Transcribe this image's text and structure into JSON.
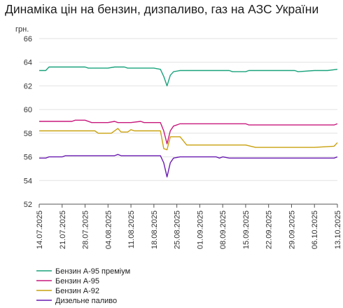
{
  "chart_data": {
    "type": "line",
    "title": "Динаміка цін на бензин, дизпаливо, газ на АЗС України",
    "ylabel": "грн.",
    "xlabel": "",
    "ylim": [
      52,
      66
    ],
    "yticks": [
      52,
      54,
      56,
      58,
      60,
      62,
      64,
      66
    ],
    "grid": "horizontal",
    "legend_position": "bottom-left",
    "x_ticks": [
      "14.07.2025",
      "21.07.2025",
      "28.07.2025",
      "04.08.2025",
      "11.08.2025",
      "18.08.2025",
      "25.08.2025",
      "01.09.2025",
      "08.09.2025",
      "15.09.2025",
      "22.09.2025",
      "29.09.2025",
      "06.10.2025",
      "13.10.2025"
    ],
    "series": [
      {
        "name": "Бензин А-95 преміум",
        "color": "#1aa37c",
        "points": [
          [
            "14.07.2025",
            63.3
          ],
          [
            "16.07.2025",
            63.3
          ],
          [
            "17.07.2025",
            63.6
          ],
          [
            "21.07.2025",
            63.6
          ],
          [
            "28.07.2025",
            63.6
          ],
          [
            "29.07.2025",
            63.5
          ],
          [
            "04.08.2025",
            63.5
          ],
          [
            "06.08.2025",
            63.6
          ],
          [
            "09.08.2025",
            63.6
          ],
          [
            "10.08.2025",
            63.5
          ],
          [
            "18.08.2025",
            63.5
          ],
          [
            "20.08.2025",
            63.4
          ],
          [
            "21.08.2025",
            62.8
          ],
          [
            "22.08.2025",
            62.0
          ],
          [
            "23.08.2025",
            62.9
          ],
          [
            "24.08.2025",
            63.2
          ],
          [
            "26.08.2025",
            63.3
          ],
          [
            "08.09.2025",
            63.3
          ],
          [
            "10.09.2025",
            63.3
          ],
          [
            "11.09.2025",
            63.2
          ],
          [
            "15.09.2025",
            63.2
          ],
          [
            "16.09.2025",
            63.3
          ],
          [
            "22.09.2025",
            63.3
          ],
          [
            "30.09.2025",
            63.3
          ],
          [
            "01.10.2025",
            63.2
          ],
          [
            "06.10.2025",
            63.3
          ],
          [
            "10.10.2025",
            63.3
          ],
          [
            "13.10.2025",
            63.4
          ]
        ]
      },
      {
        "name": "Бензин А-95",
        "color": "#c8197d",
        "points": [
          [
            "14.07.2025",
            59.0
          ],
          [
            "21.07.2025",
            59.0
          ],
          [
            "24.07.2025",
            59.0
          ],
          [
            "25.07.2025",
            59.1
          ],
          [
            "28.07.2025",
            59.1
          ],
          [
            "30.07.2025",
            58.9
          ],
          [
            "04.08.2025",
            58.9
          ],
          [
            "06.08.2025",
            59.0
          ],
          [
            "07.08.2025",
            58.9
          ],
          [
            "11.08.2025",
            58.9
          ],
          [
            "14.08.2025",
            59.0
          ],
          [
            "15.08.2025",
            58.9
          ],
          [
            "18.08.2025",
            58.9
          ],
          [
            "20.08.2025",
            58.9
          ],
          [
            "21.08.2025",
            58.2
          ],
          [
            "22.08.2025",
            57.1
          ],
          [
            "23.08.2025",
            58.2
          ],
          [
            "24.08.2025",
            58.6
          ],
          [
            "26.08.2025",
            58.8
          ],
          [
            "01.09.2025",
            58.8
          ],
          [
            "08.09.2025",
            58.8
          ],
          [
            "15.09.2025",
            58.8
          ],
          [
            "16.09.2025",
            58.7
          ],
          [
            "22.09.2025",
            58.7
          ],
          [
            "06.10.2025",
            58.7
          ],
          [
            "12.10.2025",
            58.7
          ],
          [
            "13.10.2025",
            58.8
          ]
        ]
      },
      {
        "name": "Бензин А-92",
        "color": "#c9a10f",
        "points": [
          [
            "14.07.2025",
            58.2
          ],
          [
            "21.07.2025",
            58.2
          ],
          [
            "28.07.2025",
            58.2
          ],
          [
            "31.07.2025",
            58.2
          ],
          [
            "01.08.2025",
            58.0
          ],
          [
            "05.08.2025",
            58.0
          ],
          [
            "07.08.2025",
            58.4
          ],
          [
            "08.08.2025",
            58.1
          ],
          [
            "10.08.2025",
            58.1
          ],
          [
            "11.08.2025",
            58.3
          ],
          [
            "12.08.2025",
            58.2
          ],
          [
            "18.08.2025",
            58.2
          ],
          [
            "20.08.2025",
            58.2
          ],
          [
            "21.08.2025",
            56.7
          ],
          [
            "22.08.2025",
            56.6
          ],
          [
            "23.08.2025",
            57.7
          ],
          [
            "26.08.2025",
            57.7
          ],
          [
            "28.08.2025",
            57.0
          ],
          [
            "01.09.2025",
            57.0
          ],
          [
            "08.09.2025",
            57.0
          ],
          [
            "15.09.2025",
            57.0
          ],
          [
            "18.09.2025",
            56.8
          ],
          [
            "22.09.2025",
            56.8
          ],
          [
            "06.10.2025",
            56.8
          ],
          [
            "12.10.2025",
            56.9
          ],
          [
            "13.10.2025",
            57.2
          ]
        ]
      },
      {
        "name": "Дизельне паливо",
        "color": "#6a1bb0",
        "points": [
          [
            "14.07.2025",
            55.9
          ],
          [
            "16.07.2025",
            55.9
          ],
          [
            "17.07.2025",
            56.0
          ],
          [
            "21.07.2025",
            56.0
          ],
          [
            "22.07.2025",
            56.1
          ],
          [
            "28.07.2025",
            56.1
          ],
          [
            "04.08.2025",
            56.1
          ],
          [
            "06.08.2025",
            56.1
          ],
          [
            "07.08.2025",
            56.2
          ],
          [
            "08.08.2025",
            56.1
          ],
          [
            "18.08.2025",
            56.1
          ],
          [
            "20.08.2025",
            56.1
          ],
          [
            "21.08.2025",
            55.5
          ],
          [
            "22.08.2025",
            54.3
          ],
          [
            "23.08.2025",
            55.5
          ],
          [
            "24.08.2025",
            55.9
          ],
          [
            "26.08.2025",
            56.0
          ],
          [
            "01.09.2025",
            56.0
          ],
          [
            "06.09.2025",
            56.0
          ],
          [
            "07.09.2025",
            55.9
          ],
          [
            "08.09.2025",
            56.0
          ],
          [
            "10.09.2025",
            55.9
          ],
          [
            "22.09.2025",
            55.9
          ],
          [
            "06.10.2025",
            55.9
          ],
          [
            "12.10.2025",
            55.9
          ],
          [
            "13.10.2025",
            56.0
          ]
        ]
      }
    ]
  }
}
